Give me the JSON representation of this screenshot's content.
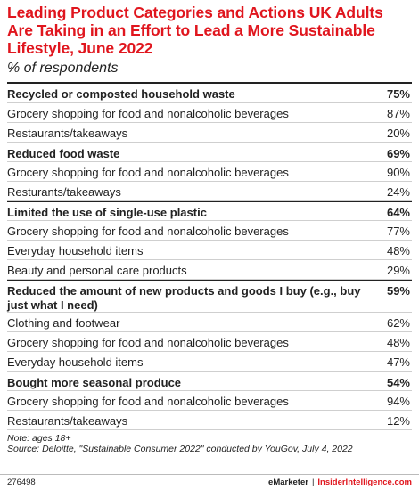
{
  "title": "Leading Product Categories and Actions UK Adults Are Taking in an Effort to Lead a More Sustainable Lifestyle, June 2022",
  "subtitle": "% of respondents",
  "chart_data": {
    "type": "table",
    "groups": [
      {
        "action": "Recycled or composted household waste",
        "value": "75%",
        "items": [
          {
            "label": "Grocery shopping for food and nonalcoholic beverages",
            "value": "87%"
          },
          {
            "label": "Restaurants/takeaways",
            "value": "20%"
          }
        ]
      },
      {
        "action": "Reduced food waste",
        "value": "69%",
        "items": [
          {
            "label": "Grocery shopping for food and nonalcoholic beverages",
            "value": "90%"
          },
          {
            "label": "Resturants/takeaways",
            "value": "24%"
          }
        ]
      },
      {
        "action": "Limited the use of single-use plastic",
        "value": "64%",
        "items": [
          {
            "label": "Grocery shopping for food and nonalcoholic beverages",
            "value": "77%"
          },
          {
            "label": "Everyday household items",
            "value": "48%"
          },
          {
            "label": "Beauty and personal care products",
            "value": "29%"
          }
        ]
      },
      {
        "action": "Reduced the amount of new products and goods I buy (e.g., buy just what I need)",
        "value": "59%",
        "items": [
          {
            "label": "Clothing and footwear",
            "value": "62%"
          },
          {
            "label": "Grocery shopping for food and nonalcoholic beverages",
            "value": "48%"
          },
          {
            "label": "Everyday household items",
            "value": "47%"
          }
        ]
      },
      {
        "action": "Bought more seasonal produce",
        "value": "54%",
        "items": [
          {
            "label": "Grocery shopping for food and nonalcoholic beverages",
            "value": "94%"
          },
          {
            "label": "Restaurants/takeaways",
            "value": "12%"
          }
        ]
      }
    ]
  },
  "note": "Note: ages 18+",
  "source": "Source: Deloitte, \"Sustainable Consumer 2022\" conducted by YouGov, July 4, 2022",
  "footer": {
    "id": "276498",
    "brand": "eMarketer",
    "separator": "|",
    "site": "InsiderIntelligence.com"
  }
}
